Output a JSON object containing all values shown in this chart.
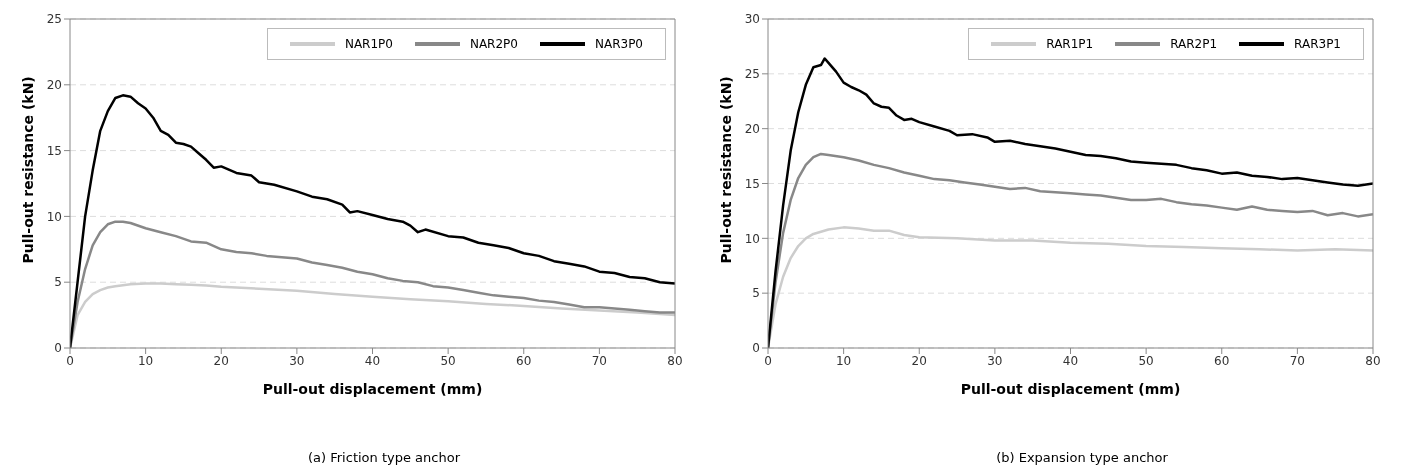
{
  "chart_data": [
    {
      "type": "line",
      "xlabel": "Pull-out displacement (mm)",
      "ylabel": "Pull-out resistance (kN)",
      "annotations": [
        "(a) Friction type anchor"
      ],
      "xlim": [
        0,
        80
      ],
      "xticks": [
        0,
        10,
        20,
        30,
        40,
        50,
        60,
        70,
        80
      ],
      "ylim": [
        0,
        25
      ],
      "yticks": [
        0,
        5,
        10,
        15,
        20,
        25
      ],
      "grid": "y",
      "legend": "top right",
      "series": [
        {
          "name": "NAR1P0",
          "color": "#cccccc",
          "x": [
            0,
            1,
            2,
            3,
            4,
            5,
            6,
            8,
            10,
            12,
            14,
            16,
            18,
            20,
            25,
            30,
            35,
            40,
            45,
            50,
            55,
            60,
            65,
            70,
            75,
            80
          ],
          "values": [
            0,
            2.5,
            3.5,
            4.1,
            4.4,
            4.6,
            4.7,
            4.85,
            4.9,
            4.9,
            4.85,
            4.8,
            4.75,
            4.65,
            4.5,
            4.35,
            4.1,
            3.9,
            3.7,
            3.55,
            3.35,
            3.2,
            3,
            2.85,
            2.7,
            2.5
          ]
        },
        {
          "name": "NAR2P0",
          "color": "#888888",
          "x": [
            0,
            1,
            2,
            3,
            4,
            5,
            6,
            7,
            8,
            10,
            12,
            14,
            16,
            18,
            20,
            22,
            24,
            26,
            28,
            30,
            32,
            34,
            36,
            38,
            40,
            42,
            44,
            46,
            48,
            50,
            52,
            54,
            56,
            58,
            60,
            62,
            64,
            66,
            68,
            70,
            72,
            74,
            76,
            78,
            80
          ],
          "values": [
            0,
            3.5,
            6,
            7.8,
            8.8,
            9.4,
            9.6,
            9.6,
            9.5,
            9.1,
            8.8,
            8.5,
            8.1,
            8,
            7.5,
            7.3,
            7.2,
            7,
            6.9,
            6.8,
            6.5,
            6.3,
            6.1,
            5.8,
            5.6,
            5.3,
            5.1,
            5,
            4.7,
            4.6,
            4.4,
            4.2,
            4,
            3.9,
            3.8,
            3.6,
            3.5,
            3.3,
            3.1,
            3.1,
            3,
            2.9,
            2.8,
            2.7,
            2.7
          ]
        },
        {
          "name": "NAR3P0",
          "color": "#000000",
          "x": [
            0,
            1,
            2,
            3,
            4,
            5,
            6,
            7,
            8,
            9,
            10,
            11,
            12,
            13,
            14,
            15,
            16,
            17,
            18,
            19,
            20,
            22,
            24,
            25,
            27,
            30,
            32,
            34,
            36,
            37,
            38,
            40,
            42,
            44,
            45,
            46,
            47,
            50,
            52,
            54,
            56,
            58,
            60,
            62,
            64,
            66,
            68,
            70,
            72,
            74,
            76,
            78,
            80
          ],
          "values": [
            0,
            5,
            10,
            13.5,
            16.5,
            18,
            19,
            19.2,
            19.1,
            18.6,
            18.2,
            17.5,
            16.5,
            16.2,
            15.6,
            15.5,
            15.3,
            14.8,
            14.3,
            13.7,
            13.8,
            13.3,
            13.1,
            12.6,
            12.4,
            11.9,
            11.5,
            11.3,
            10.9,
            10.3,
            10.4,
            10.1,
            9.8,
            9.6,
            9.3,
            8.8,
            9,
            8.5,
            8.4,
            8,
            7.8,
            7.6,
            7.2,
            7,
            6.6,
            6.4,
            6.2,
            5.8,
            5.7,
            5.4,
            5.3,
            5,
            4.9
          ]
        }
      ]
    },
    {
      "type": "line",
      "xlabel": "Pull-out displacement (mm)",
      "ylabel": "Pull-out resistance (kN)",
      "annotations": [
        "(b) Expansion type anchor"
      ],
      "xlim": [
        0,
        80
      ],
      "xticks": [
        0,
        10,
        20,
        30,
        40,
        50,
        60,
        70,
        80
      ],
      "ylim": [
        0,
        30
      ],
      "yticks": [
        0,
        5,
        10,
        15,
        20,
        25,
        30
      ],
      "grid": "y",
      "legend": "top right",
      "series": [
        {
          "name": "RAR1P1",
          "color": "#cccccc",
          "x": [
            0,
            1,
            2,
            3,
            4,
            5,
            6,
            8,
            10,
            12,
            14,
            16,
            18,
            20,
            25,
            30,
            35,
            40,
            45,
            50,
            55,
            60,
            65,
            70,
            75,
            80
          ],
          "values": [
            0,
            4,
            6.5,
            8.2,
            9.3,
            10,
            10.4,
            10.8,
            11,
            10.9,
            10.7,
            10.7,
            10.3,
            10.1,
            10,
            9.8,
            9.8,
            9.6,
            9.5,
            9.3,
            9.2,
            9.1,
            9,
            8.9,
            9,
            8.9
          ]
        },
        {
          "name": "RAR2P1",
          "color": "#888888",
          "x": [
            0,
            1,
            2,
            3,
            4,
            5,
            6,
            7,
            8,
            10,
            12,
            14,
            16,
            18,
            20,
            22,
            24,
            26,
            28,
            30,
            32,
            34,
            36,
            38,
            40,
            42,
            44,
            46,
            48,
            50,
            52,
            54,
            56,
            58,
            60,
            62,
            64,
            66,
            68,
            70,
            72,
            74,
            76,
            78,
            80
          ],
          "values": [
            0,
            6,
            10.5,
            13.5,
            15.5,
            16.7,
            17.4,
            17.7,
            17.6,
            17.4,
            17.1,
            16.7,
            16.4,
            16,
            15.7,
            15.4,
            15.3,
            15.1,
            14.9,
            14.7,
            14.5,
            14.6,
            14.3,
            14.2,
            14.1,
            14,
            13.9,
            13.7,
            13.5,
            13.5,
            13.6,
            13.3,
            13.1,
            13,
            12.8,
            12.6,
            12.9,
            12.6,
            12.5,
            12.4,
            12.5,
            12.1,
            12.3,
            12,
            12.2
          ]
        },
        {
          "name": "RAR3P1",
          "color": "#000000",
          "x": [
            0,
            1,
            2,
            3,
            4,
            5,
            6,
            7,
            7.5,
            8,
            9,
            10,
            11,
            12,
            13,
            14,
            15,
            16,
            17,
            18,
            19,
            20,
            22,
            24,
            25,
            27,
            29,
            30,
            32,
            34,
            36,
            38,
            40,
            42,
            44,
            46,
            48,
            50,
            52,
            54,
            56,
            58,
            60,
            62,
            64,
            66,
            68,
            70,
            72,
            74,
            76,
            78,
            80
          ],
          "values": [
            0,
            7,
            13,
            18,
            21.5,
            24,
            25.6,
            25.8,
            26.4,
            26,
            25.2,
            24.2,
            23.8,
            23.5,
            23.1,
            22.3,
            22,
            21.9,
            21.2,
            20.8,
            20.9,
            20.6,
            20.2,
            19.8,
            19.4,
            19.5,
            19.2,
            18.8,
            18.9,
            18.6,
            18.4,
            18.2,
            17.9,
            17.6,
            17.5,
            17.3,
            17,
            16.9,
            16.8,
            16.7,
            16.4,
            16.2,
            15.9,
            16,
            15.7,
            15.6,
            15.4,
            15.5,
            15.3,
            15.1,
            14.9,
            14.8,
            15
          ]
        }
      ]
    }
  ]
}
